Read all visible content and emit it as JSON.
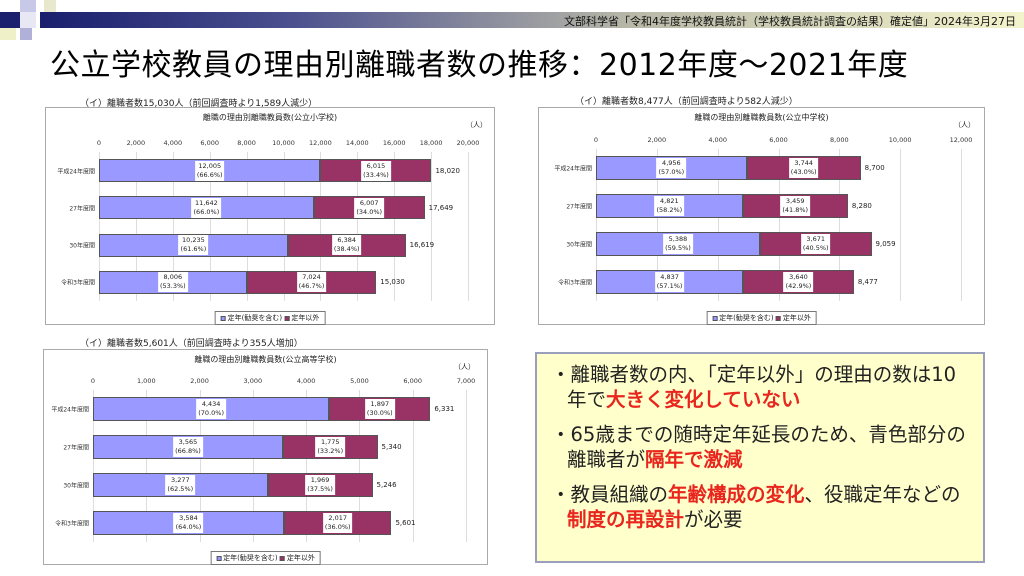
{
  "header": {
    "source": "文部科学省「令和4年度学校教員統計（学校教員統計調査の結果）確定値」2024年3月27日",
    "title": "公立学校教員の理由別離職者数の推移：2012年度～2021年度"
  },
  "colors": {
    "retirement": "#9999ff",
    "other": "#993366",
    "accent": "#e8261e"
  },
  "chart_data": [
    {
      "type": "bar",
      "stacked": true,
      "orientation": "horizontal",
      "caption": "（イ）離職者数15,030人（前回調査時より1,589人減少）",
      "title": "離職の理由別離職教員数(公立小学校)",
      "unit": "（人）",
      "xlim": [
        0,
        20000
      ],
      "ticks": [
        "0",
        "2,000",
        "4,000",
        "6,000",
        "8,000",
        "10,000",
        "12,000",
        "14,000",
        "16,000",
        "18,000",
        "20,000"
      ],
      "categories": [
        "平成24年度間",
        "27年度間",
        "30年度間",
        "令和3年度間"
      ],
      "series": [
        {
          "name": "定年(勧奨を含む)",
          "values": [
            12005,
            11642,
            10235,
            8006
          ],
          "labels": [
            "12,005",
            "11,642",
            "10,235",
            "8,006"
          ],
          "pct": [
            "(66.6%)",
            "(66.0%)",
            "(61.6%)",
            "(53.3%)"
          ]
        },
        {
          "name": "定年以外",
          "values": [
            6015,
            6007,
            6384,
            7024
          ],
          "labels": [
            "6,015",
            "6,007",
            "6,384",
            "7,024"
          ],
          "pct": [
            "(33.4%)",
            "(34.0%)",
            "(38.4%)",
            "(46.7%)"
          ]
        }
      ],
      "totals": [
        "18,020",
        "17,649",
        "16,619",
        "15,030"
      ],
      "legend": [
        "定年(勧奨を含む)",
        "定年以外"
      ]
    },
    {
      "type": "bar",
      "stacked": true,
      "orientation": "horizontal",
      "caption": "（イ）離職者数8,477人（前回調査時より582人減少）",
      "title": "離職の理由別離職教員数(公立中学校)",
      "unit": "（人）",
      "xlim": [
        0,
        12000
      ],
      "ticks": [
        "0",
        "2,000",
        "4,000",
        "6,000",
        "8,000",
        "10,000",
        "12,000"
      ],
      "categories": [
        "平成24年度間",
        "27年度間",
        "30年度間",
        "令和3年度間"
      ],
      "series": [
        {
          "name": "定年(勧奨を含む)",
          "values": [
            4956,
            4821,
            5388,
            4837
          ],
          "labels": [
            "4,956",
            "4,821",
            "5,388",
            "4,837"
          ],
          "pct": [
            "(57.0%)",
            "(58.2%)",
            "(59.5%)",
            "(57.1%)"
          ]
        },
        {
          "name": "定年以外",
          "values": [
            3744,
            3459,
            3671,
            3640
          ],
          "labels": [
            "3,744",
            "3,459",
            "3,671",
            "3,640"
          ],
          "pct": [
            "(43.0%)",
            "(41.8%)",
            "(40.5%)",
            "(42.9%)"
          ]
        }
      ],
      "totals": [
        "8,700",
        "8,280",
        "9,059",
        "8,477"
      ],
      "legend": [
        "定年(勧奨を含む)",
        "定年以外"
      ]
    },
    {
      "type": "bar",
      "stacked": true,
      "orientation": "horizontal",
      "caption": "（イ）離職者数5,601人（前回調査時より355人増加）",
      "title": "離職の理由別離職教員数(公立高等学校)",
      "unit": "（人）",
      "xlim": [
        0,
        7000
      ],
      "ticks": [
        "0",
        "1,000",
        "2,000",
        "3,000",
        "4,000",
        "5,000",
        "6,000",
        "7,000"
      ],
      "categories": [
        "平成24年度間",
        "27年度間",
        "30年度間",
        "令和3年度間"
      ],
      "series": [
        {
          "name": "定年(勧奨を含む)",
          "values": [
            4434,
            3565,
            3277,
            3584
          ],
          "labels": [
            "4,434",
            "3,565",
            "3,277",
            "3,584"
          ],
          "pct": [
            "(70.0%)",
            "(66.8%)",
            "(62.5%)",
            "(64.0%)"
          ]
        },
        {
          "name": "定年以外",
          "values": [
            1897,
            1775,
            1969,
            2017
          ],
          "labels": [
            "1,897",
            "1,775",
            "1,969",
            "2,017"
          ],
          "pct": [
            "(30.0%)",
            "(33.2%)",
            "(37.5%)",
            "(36.0%)"
          ]
        }
      ],
      "totals": [
        "6,331",
        "5,340",
        "5,246",
        "5,601"
      ],
      "legend": [
        "定年(勧奨を含む)",
        "定年以外"
      ]
    }
  ],
  "notes": [
    {
      "text": "離職者数の内、「定年以外」の理由の数は10年で",
      "em": "大きく変化していない",
      "tail": ""
    },
    {
      "text": "65歳までの随時定年延長のため、青色部分の離職者が",
      "em": "隔年で激減",
      "tail": ""
    },
    {
      "text": "教員組織の",
      "em": "年齢構成の変化",
      "tail": "、役職定年などの",
      "em2": "制度の再設計",
      "tail2": "が必要"
    }
  ]
}
